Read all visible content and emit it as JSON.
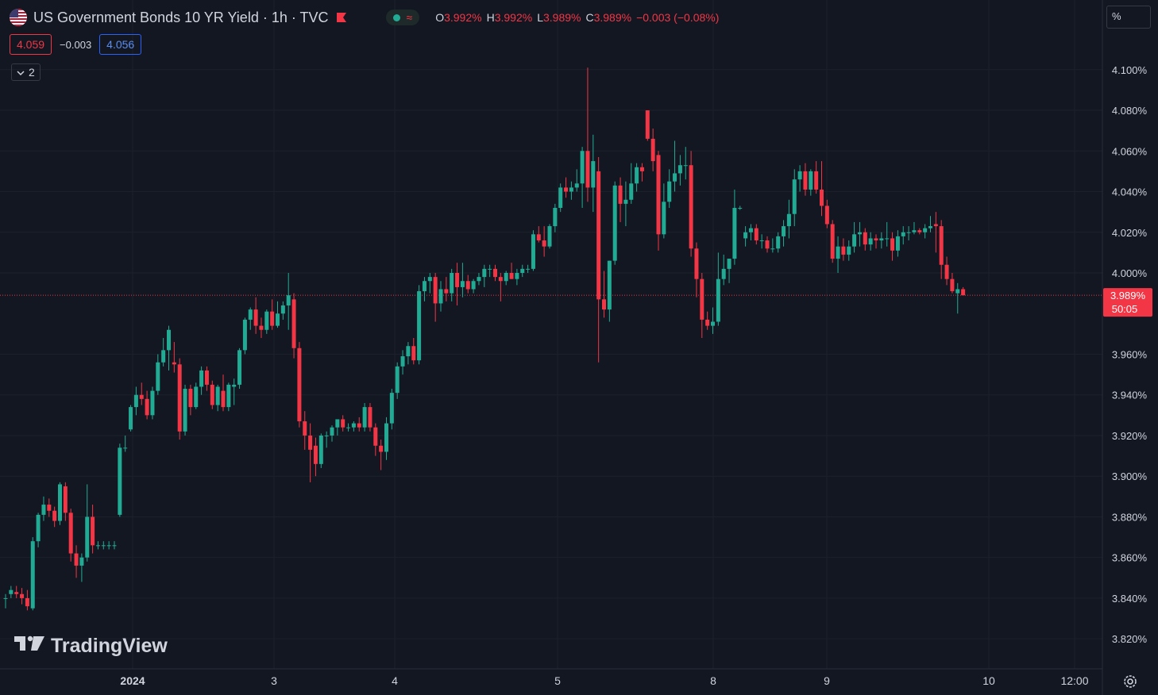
{
  "header": {
    "title": "US Government Bonds 10 YR Yield · 1h · TVC",
    "ohlc": {
      "o_label": "O",
      "o_value": "3.992%",
      "h_label": "H",
      "h_value": "3.992%",
      "l_label": "L",
      "l_value": "3.989%",
      "c_label": "C",
      "c_value": "3.989%",
      "change": "−0.003 (−0.08%)"
    },
    "wave_icon": "≈"
  },
  "quotes": {
    "sell": "4.059",
    "spread": "−0.003",
    "buy": "4.056"
  },
  "indicators_toggle": {
    "count": "2"
  },
  "scale_mode": "%",
  "logo": {
    "text": "TradingView"
  },
  "price_label": {
    "value": "3.989%",
    "countdown": "50:05"
  },
  "colors": {
    "up": "#22ab94",
    "down": "#f23645",
    "background": "#131722",
    "grid": "#1e222d",
    "text": "#d1d4dc"
  },
  "chart_data": {
    "type": "candlestick",
    "title": "US Government Bonds 10 YR Yield · 1h · TVC",
    "y_unit": "%",
    "ylim": [
      3.81,
      4.11
    ],
    "y_ticks": [
      "4.100%",
      "4.080%",
      "4.060%",
      "4.040%",
      "4.020%",
      "4.000%",
      "3.960%",
      "3.940%",
      "3.920%",
      "3.900%",
      "3.880%",
      "3.860%",
      "3.840%",
      "3.820%"
    ],
    "x_ticks": [
      "2024",
      "3",
      "4",
      "5",
      "8",
      "9",
      "10",
      "12:00"
    ],
    "last_price": 3.989,
    "grid": true,
    "ohlc": [
      [
        3.84,
        3.842,
        3.835,
        3.84
      ],
      [
        3.842,
        3.846,
        3.84,
        3.844
      ],
      [
        3.843,
        3.846,
        3.84,
        3.842
      ],
      [
        3.842,
        3.845,
        3.837,
        3.84
      ],
      [
        3.84,
        3.844,
        3.834,
        3.836
      ],
      [
        3.835,
        3.87,
        3.834,
        3.868
      ],
      [
        3.868,
        3.882,
        3.865,
        3.881
      ],
      [
        3.881,
        3.89,
        3.878,
        3.886
      ],
      [
        3.886,
        3.889,
        3.88,
        3.883
      ],
      [
        3.883,
        3.885,
        3.875,
        3.878
      ],
      [
        3.878,
        3.897,
        3.876,
        3.896
      ],
      [
        3.895,
        3.897,
        3.878,
        3.882
      ],
      [
        3.882,
        3.884,
        3.858,
        3.862
      ],
      [
        3.862,
        3.866,
        3.85,
        3.856
      ],
      [
        3.856,
        3.862,
        3.848,
        3.86
      ],
      [
        3.86,
        3.896,
        3.858,
        3.88
      ],
      [
        3.88,
        3.886,
        3.862,
        3.866
      ],
      [
        3.866,
        3.868,
        3.864,
        3.866
      ],
      [
        3.866,
        3.868,
        3.864,
        3.866
      ],
      [
        3.866,
        3.868,
        3.864,
        3.866
      ],
      [
        3.866,
        3.868,
        3.864,
        3.866
      ],
      [
        3.881,
        3.916,
        3.88,
        3.914
      ],
      [
        3.914,
        3.92,
        3.912,
        3.914
      ],
      [
        3.923,
        3.935,
        3.922,
        3.934
      ],
      [
        3.934,
        3.944,
        3.93,
        3.94
      ],
      [
        3.94,
        3.946,
        3.935,
        3.938
      ],
      [
        3.938,
        3.942,
        3.928,
        3.93
      ],
      [
        3.93,
        3.944,
        3.928,
        3.942
      ],
      [
        3.942,
        3.96,
        3.94,
        3.956
      ],
      [
        3.956,
        3.968,
        3.954,
        3.962
      ],
      [
        3.962,
        3.974,
        3.952,
        3.972
      ],
      [
        3.956,
        3.966,
        3.951,
        3.955
      ],
      [
        3.955,
        3.958,
        3.918,
        3.922
      ],
      [
        3.922,
        3.945,
        3.92,
        3.943
      ],
      [
        3.943,
        3.945,
        3.93,
        3.934
      ],
      [
        3.934,
        3.946,
        3.933,
        3.944
      ],
      [
        3.944,
        3.954,
        3.94,
        3.952
      ],
      [
        3.952,
        3.954,
        3.942,
        3.945
      ],
      [
        3.945,
        3.947,
        3.933,
        3.935
      ],
      [
        3.935,
        3.945,
        3.932,
        3.944
      ],
      [
        3.942,
        3.95,
        3.932,
        3.934
      ],
      [
        3.934,
        3.946,
        3.932,
        3.945
      ],
      [
        3.944,
        3.948,
        3.935,
        3.945
      ],
      [
        3.945,
        3.963,
        3.943,
        3.962
      ],
      [
        3.962,
        3.978,
        3.96,
        3.977
      ],
      [
        3.977,
        3.983,
        3.972,
        3.982
      ],
      [
        3.982,
        3.988,
        3.97,
        3.974
      ],
      [
        3.974,
        3.978,
        3.968,
        3.972
      ],
      [
        3.972,
        3.982,
        3.97,
        3.981
      ],
      [
        3.981,
        3.987,
        3.972,
        3.974
      ],
      [
        3.974,
        3.986,
        3.973,
        3.98
      ],
      [
        3.98,
        3.986,
        3.977,
        3.984
      ],
      [
        3.984,
        4.0,
        3.972,
        3.989
      ],
      [
        3.987,
        3.99,
        3.958,
        3.963
      ],
      [
        3.963,
        3.966,
        3.924,
        3.927
      ],
      [
        3.927,
        3.932,
        3.913,
        3.92
      ],
      [
        3.92,
        3.926,
        3.897,
        3.913
      ],
      [
        3.915,
        3.919,
        3.9,
        3.906
      ],
      [
        3.906,
        3.921,
        3.904,
        3.92
      ],
      [
        3.92,
        3.922,
        3.914,
        3.92
      ],
      [
        3.92,
        3.925,
        3.917,
        3.924
      ],
      [
        3.924,
        3.926,
        3.92,
        3.928
      ],
      [
        3.928,
        3.93,
        3.922,
        3.924
      ],
      [
        3.924,
        3.926,
        3.922,
        3.924
      ],
      [
        3.924,
        3.927,
        3.922,
        3.926
      ],
      [
        3.926,
        3.929,
        3.922,
        3.924
      ],
      [
        3.924,
        3.936,
        3.922,
        3.934
      ],
      [
        3.934,
        3.936,
        3.922,
        3.924
      ],
      [
        3.924,
        3.926,
        3.91,
        3.915
      ],
      [
        3.915,
        3.918,
        3.903,
        3.912
      ],
      [
        3.912,
        3.929,
        3.908,
        3.926
      ],
      [
        3.926,
        3.943,
        3.923,
        3.941
      ],
      [
        3.941,
        3.956,
        3.938,
        3.954
      ],
      [
        3.954,
        3.962,
        3.95,
        3.959
      ],
      [
        3.959,
        3.966,
        3.955,
        3.964
      ],
      [
        3.964,
        3.968,
        3.955,
        3.957
      ],
      [
        3.957,
        3.994,
        3.955,
        3.991
      ],
      [
        3.991,
        3.998,
        3.986,
        3.996
      ],
      [
        3.996,
        4.0,
        3.99,
        3.998
      ],
      [
        3.998,
        4.0,
        3.976,
        3.985
      ],
      [
        3.985,
        3.996,
        3.981,
        3.992
      ],
      [
        3.992,
        3.998,
        3.986,
        3.99
      ],
      [
        3.99,
        4.002,
        3.986,
        4.0
      ],
      [
        4.0,
        4.005,
        3.984,
        3.993
      ],
      [
        3.993,
        4.005,
        3.988,
        3.996
      ],
      [
        3.996,
        3.999,
        3.99,
        3.992
      ],
      [
        3.992,
        3.997,
        3.99,
        3.996
      ],
      [
        3.996,
        4.0,
        3.994,
        3.998
      ],
      [
        3.998,
        4.004,
        3.993,
        4.002
      ],
      [
        4.002,
        4.004,
        3.998,
        4.002
      ],
      [
        4.002,
        4.004,
        3.996,
        3.998
      ],
      [
        3.998,
        4.0,
        3.986,
        3.996
      ],
      [
        3.996,
        4.001,
        3.994,
        4.0
      ],
      [
        4.0,
        4.005,
        3.997,
        3.997
      ],
      [
        3.997,
        4.002,
        3.994,
        4.0
      ],
      [
        4.0,
        4.004,
        3.998,
        4.002
      ],
      [
        4.002,
        4.004,
        4.0,
        4.002
      ],
      [
        4.002,
        4.021,
        4.001,
        4.019
      ],
      [
        4.019,
        4.023,
        4.015,
        4.016
      ],
      [
        4.016,
        4.023,
        4.008,
        4.013
      ],
      [
        4.013,
        4.024,
        4.012,
        4.023
      ],
      [
        4.023,
        4.034,
        4.02,
        4.032
      ],
      [
        4.032,
        4.044,
        4.03,
        4.042
      ],
      [
        4.042,
        4.047,
        4.037,
        4.04
      ],
      [
        4.04,
        4.045,
        4.036,
        4.042
      ],
      [
        4.042,
        4.051,
        4.04,
        4.044
      ],
      [
        4.044,
        4.062,
        4.032,
        4.06
      ],
      [
        4.06,
        4.101,
        4.035,
        4.042
      ],
      [
        4.042,
        4.068,
        4.03,
        4.055
      ],
      [
        4.05,
        4.057,
        3.956,
        3.987
      ],
      [
        3.987,
        4.001,
        3.978,
        3.982
      ],
      [
        3.982,
        4.006,
        3.976,
        4.006
      ],
      [
        4.006,
        4.045,
        4.004,
        4.043
      ],
      [
        4.043,
        4.047,
        4.025,
        4.034
      ],
      [
        4.034,
        4.045,
        4.023,
        4.036
      ],
      [
        4.036,
        4.054,
        4.034,
        4.044
      ],
      [
        4.044,
        4.054,
        4.04,
        4.052
      ],
      [
        4.052,
        4.054,
        4.045,
        4.05
      ],
      [
        4.08,
        4.08,
        4.065,
        4.066
      ],
      [
        4.066,
        4.071,
        4.05,
        4.055
      ],
      [
        4.058,
        4.06,
        4.011,
        4.019
      ],
      [
        4.019,
        4.044,
        4.017,
        4.035
      ],
      [
        4.035,
        4.051,
        4.032,
        4.045
      ],
      [
        4.045,
        4.065,
        4.04,
        4.049
      ],
      [
        4.049,
        4.058,
        4.043,
        4.053
      ],
      [
        4.053,
        4.062,
        4.046,
        4.053
      ],
      [
        4.053,
        4.06,
        4.008,
        4.012
      ],
      [
        4.012,
        4.015,
        3.988,
        3.997
      ],
      [
        3.997,
        4.0,
        3.968,
        3.977
      ],
      [
        3.977,
        3.981,
        3.972,
        3.974
      ],
      [
        3.974,
        3.983,
        3.97,
        3.976
      ],
      [
        3.976,
        4.01,
        3.974,
        3.997
      ],
      [
        3.997,
        4.009,
        3.994,
        4.002
      ],
      [
        4.002,
        4.007,
        3.995,
        4.007
      ],
      [
        4.007,
        4.041,
        4.004,
        4.032
      ],
      [
        4.032,
        4.033,
        4.031,
        4.032
      ],
      [
        4.017,
        4.023,
        4.013,
        4.02
      ],
      [
        4.02,
        4.024,
        4.016,
        4.022
      ],
      [
        4.022,
        4.024,
        4.014,
        4.016
      ],
      [
        4.016,
        4.019,
        4.012,
        4.016
      ],
      [
        4.016,
        4.018,
        4.01,
        4.012
      ],
      [
        4.012,
        4.017,
        4.01,
        4.012
      ],
      [
        4.012,
        4.02,
        4.01,
        4.018
      ],
      [
        4.018,
        4.026,
        4.013,
        4.023
      ],
      [
        4.023,
        4.036,
        4.017,
        4.029
      ],
      [
        4.029,
        4.051,
        4.023,
        4.046
      ],
      [
        4.046,
        4.053,
        4.04,
        4.05
      ],
      [
        4.05,
        4.054,
        4.038,
        4.041
      ],
      [
        4.041,
        4.051,
        4.038,
        4.05
      ],
      [
        4.05,
        4.055,
        4.039,
        4.041
      ],
      [
        4.041,
        4.055,
        4.028,
        4.033
      ],
      [
        4.033,
        4.036,
        4.022,
        4.024
      ],
      [
        4.024,
        4.026,
        4.005,
        4.007
      ],
      [
        4.007,
        4.018,
        4.0,
        4.013
      ],
      [
        4.013,
        4.017,
        4.006,
        4.009
      ],
      [
        4.009,
        4.016,
        4.006,
        4.013
      ],
      [
        4.013,
        4.025,
        4.01,
        4.019
      ],
      [
        4.019,
        4.025,
        4.013,
        4.02
      ],
      [
        4.02,
        4.022,
        4.011,
        4.014
      ],
      [
        4.014,
        4.02,
        4.011,
        4.017
      ],
      [
        4.017,
        4.019,
        4.012,
        4.016
      ],
      [
        4.016,
        4.02,
        4.012,
        4.017
      ],
      [
        4.017,
        4.025,
        4.013,
        4.017
      ],
      [
        4.017,
        4.02,
        4.006,
        4.011
      ],
      [
        4.011,
        4.021,
        4.008,
        4.018
      ],
      [
        4.018,
        4.023,
        4.014,
        4.02
      ],
      [
        4.02,
        4.023,
        4.016,
        4.02
      ],
      [
        4.02,
        4.025,
        4.019,
        4.021
      ],
      [
        4.021,
        4.022,
        4.019,
        4.02
      ],
      [
        4.02,
        4.024,
        4.017,
        4.022
      ],
      [
        4.022,
        4.028,
        4.02,
        4.023
      ],
      [
        4.024,
        4.03,
        4.01,
        4.023
      ],
      [
        4.023,
        4.026,
        3.997,
        4.004
      ],
      [
        4.004,
        4.008,
        3.994,
        3.997
      ],
      [
        3.997,
        4.0,
        3.99,
        3.991
      ],
      [
        3.99,
        3.995,
        3.98,
        3.992
      ],
      [
        3.992,
        3.993,
        3.989,
        3.989
      ]
    ]
  }
}
